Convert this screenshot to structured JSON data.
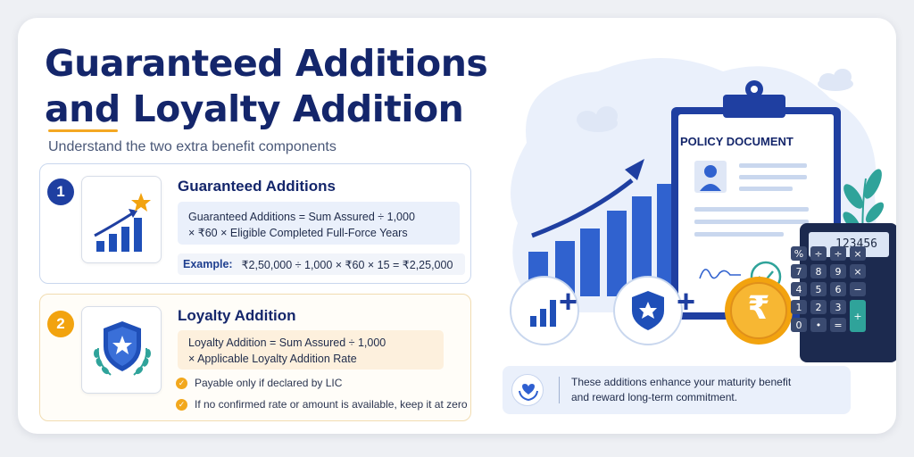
{
  "header": {
    "title": "Guaranteed Additions and Loyalty Addition",
    "subtitle": "Understand the two extra benefit components"
  },
  "sections": [
    {
      "number": "1",
      "title": "Guaranteed Additions",
      "formula_line1": "Guaranteed Additions = Sum Assured ÷ 1,000",
      "formula_line2": "× ₹60 × Eligible Completed Full-Force Years",
      "example_label": "Example:",
      "example_text": "₹2,50,000 ÷ 1,000 × ₹60 × 15 = ₹2,25,000",
      "icon": "bar-chart-growth-icon"
    },
    {
      "number": "2",
      "title": "Loyalty Addition",
      "formula_line1": "Loyalty Addition = Sum Assured ÷ 1,000",
      "formula_line2": "× Applicable Loyalty Addition Rate",
      "bullets": [
        "Payable only if declared by LIC",
        "If no confirmed rate or amount is available, keep it at zero"
      ],
      "icon": "shield-star-laurel-icon"
    }
  ],
  "illustration": {
    "document_title": "POLICY DOCUMENT",
    "calculator_display": "123456",
    "calculator_keys": [
      "%",
      "÷",
      "÷",
      "×",
      "7",
      "8",
      "9",
      "×",
      "4",
      "5",
      "6",
      "−",
      "1",
      "2",
      "3",
      "+",
      "0",
      "•",
      "="
    ],
    "plus_sign": "+",
    "currency_symbol": "₹"
  },
  "info": {
    "text_line1": "These additions enhance your maturity benefit",
    "text_line2": "and reward long-term commitment."
  },
  "colors": {
    "navy": "#14266b",
    "blue": "#2f5fd0",
    "amber": "#f2a30f",
    "teal": "#2fa39a"
  }
}
